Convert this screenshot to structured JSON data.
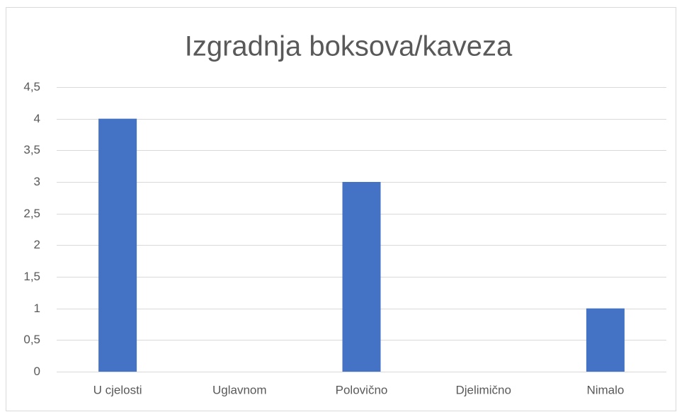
{
  "chart_data": {
    "type": "bar",
    "title": "Izgradnja boksova/kaveza",
    "categories": [
      "U cjelosti",
      "Uglavnom",
      "Polovično",
      "Djelimično",
      "Nimalo"
    ],
    "values": [
      4,
      0,
      3,
      0,
      1
    ],
    "color": "#4472c4",
    "ylim": [
      0,
      4.5
    ],
    "yticks": [
      0,
      {
        "value": 0.5,
        "label": "0,5"
      },
      1,
      {
        "value": 1.5,
        "label": "1,5"
      },
      2,
      {
        "value": 2.5,
        "label": "2,5"
      },
      3,
      {
        "value": 3.5,
        "label": "3,5"
      },
      4,
      {
        "value": 4.5,
        "label": "4,5"
      }
    ],
    "grid": true
  }
}
